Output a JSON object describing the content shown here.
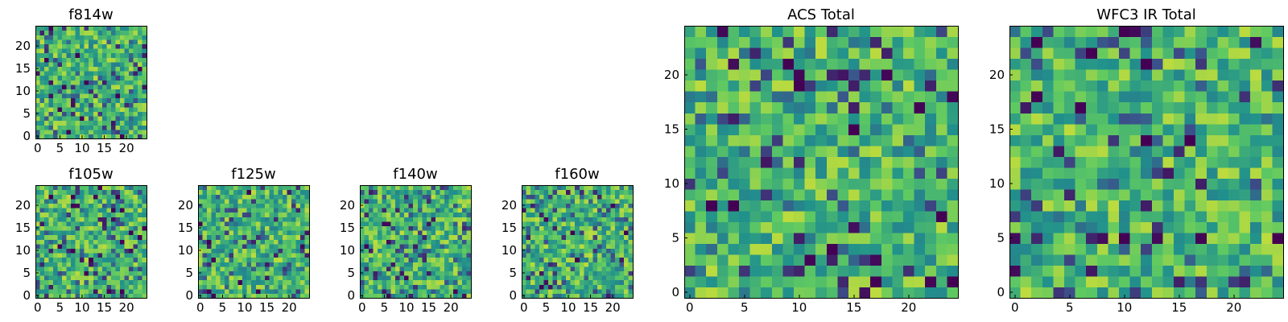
{
  "colormap": "viridis",
  "colormap_stops": [
    "#440154",
    "#3b528b",
    "#21918c",
    "#5ec962",
    "#fde725"
  ],
  "chart_data": [
    {
      "type": "heatmap",
      "panel": "f814w",
      "title": "f814w",
      "xlabel": "",
      "ylabel": "",
      "xlim": [
        0,
        24
      ],
      "ylim": [
        0,
        24
      ],
      "grid_size": 25,
      "pattern_seed": 814,
      "xticks": [
        0,
        5,
        10,
        15,
        20
      ],
      "yticks": [
        0,
        5,
        10,
        15,
        20
      ],
      "xtick_labels": [
        "0",
        "5",
        "10",
        "15",
        "20"
      ],
      "ytick_labels": [
        "0",
        "5",
        "10",
        "15",
        "20"
      ]
    },
    {
      "type": "heatmap",
      "panel": "f105w",
      "title": "f105w",
      "xlabel": "",
      "ylabel": "",
      "xlim": [
        0,
        24
      ],
      "ylim": [
        0,
        24
      ],
      "grid_size": 25,
      "pattern_seed": 105,
      "xticks": [
        0,
        5,
        10,
        15,
        20
      ],
      "yticks": [
        0,
        5,
        10,
        15,
        20
      ],
      "xtick_labels": [
        "0",
        "5",
        "10",
        "15",
        "20"
      ],
      "ytick_labels": [
        "0",
        "5",
        "10",
        "15",
        "20"
      ]
    },
    {
      "type": "heatmap",
      "panel": "f125w",
      "title": "f125w",
      "xlabel": "",
      "ylabel": "",
      "xlim": [
        0,
        24
      ],
      "ylim": [
        0,
        24
      ],
      "grid_size": 25,
      "pattern_seed": 125,
      "xticks": [
        0,
        5,
        10,
        15,
        20
      ],
      "yticks": [
        0,
        5,
        10,
        15,
        20
      ],
      "xtick_labels": [
        "0",
        "5",
        "10",
        "15",
        "20"
      ],
      "ytick_labels": [
        "0",
        "5",
        "10",
        "15",
        "20"
      ]
    },
    {
      "type": "heatmap",
      "panel": "f140w",
      "title": "f140w",
      "xlabel": "",
      "ylabel": "",
      "xlim": [
        0,
        24
      ],
      "ylim": [
        0,
        24
      ],
      "grid_size": 25,
      "pattern_seed": 140,
      "xticks": [
        0,
        5,
        10,
        15,
        20
      ],
      "yticks": [
        0,
        5,
        10,
        15,
        20
      ],
      "xtick_labels": [
        "0",
        "5",
        "10",
        "15",
        "20"
      ],
      "ytick_labels": [
        "0",
        "5",
        "10",
        "15",
        "20"
      ]
    },
    {
      "type": "heatmap",
      "panel": "f160w",
      "title": "f160w",
      "xlabel": "",
      "ylabel": "",
      "xlim": [
        0,
        24
      ],
      "ylim": [
        0,
        24
      ],
      "grid_size": 25,
      "pattern_seed": 160,
      "xticks": [
        0,
        5,
        10,
        15,
        20
      ],
      "yticks": [
        0,
        5,
        10,
        15,
        20
      ],
      "xtick_labels": [
        "0",
        "5",
        "10",
        "15",
        "20"
      ],
      "ytick_labels": [
        "0",
        "5",
        "10",
        "15",
        "20"
      ]
    },
    {
      "type": "heatmap",
      "panel": "acs-total",
      "title": "ACS Total",
      "xlabel": "",
      "ylabel": "",
      "xlim": [
        0,
        24
      ],
      "ylim": [
        0,
        24
      ],
      "grid_size": 25,
      "pattern_seed": 2001,
      "xticks": [
        0,
        5,
        10,
        15,
        20
      ],
      "yticks": [
        0,
        5,
        10,
        15,
        20
      ],
      "xtick_labels": [
        "0",
        "5",
        "10",
        "15",
        "20"
      ],
      "ytick_labels": [
        "0",
        "5",
        "10",
        "15",
        "20"
      ]
    },
    {
      "type": "heatmap",
      "panel": "wfc3-ir-total",
      "title": "WFC3 IR Total",
      "xlabel": "",
      "ylabel": "",
      "xlim": [
        0,
        24
      ],
      "ylim": [
        0,
        24
      ],
      "grid_size": 25,
      "pattern_seed": 3003,
      "xticks": [
        0,
        5,
        10,
        15,
        20
      ],
      "yticks": [
        0,
        5,
        10,
        15,
        20
      ],
      "xtick_labels": [
        "0",
        "5",
        "10",
        "15",
        "20"
      ],
      "ytick_labels": [
        "0",
        "5",
        "10",
        "15",
        "20"
      ]
    }
  ]
}
